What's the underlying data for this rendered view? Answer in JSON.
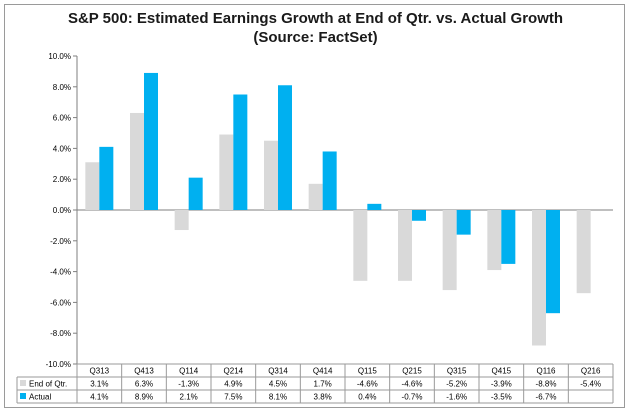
{
  "chart_data": {
    "type": "bar",
    "title": "S&P 500: Estimated Earnings Growth at End of Qtr. vs. Actual Growth",
    "subtitle": "(Source: FactSet)",
    "categories": [
      "Q313",
      "Q413",
      "Q114",
      "Q214",
      "Q314",
      "Q414",
      "Q115",
      "Q215",
      "Q315",
      "Q415",
      "Q116",
      "Q216"
    ],
    "series": [
      {
        "name": "End of Qtr.",
        "color": "#d9d9d9",
        "values": [
          3.1,
          6.3,
          -1.3,
          4.9,
          4.5,
          1.7,
          -4.6,
          -4.6,
          -5.2,
          -3.9,
          -8.8,
          -5.4
        ],
        "labels": [
          "3.1%",
          "6.3%",
          "-1.3%",
          "4.9%",
          "4.5%",
          "1.7%",
          "-4.6%",
          "-4.6%",
          "-5.2%",
          "-3.9%",
          "-8.8%",
          "-5.4%"
        ]
      },
      {
        "name": "Actual",
        "color": "#00b0f0",
        "values": [
          4.1,
          8.9,
          2.1,
          7.5,
          8.1,
          3.8,
          0.4,
          -0.7,
          -1.6,
          -3.5,
          -6.7,
          null
        ],
        "labels": [
          "4.1%",
          "8.9%",
          "2.1%",
          "7.5%",
          "8.1%",
          "3.8%",
          "0.4%",
          "-0.7%",
          "-1.6%",
          "-3.5%",
          "-6.7%",
          ""
        ]
      }
    ],
    "ylim": [
      -10,
      10
    ],
    "yticks": [
      10,
      8,
      6,
      4,
      2,
      0,
      -2,
      -4,
      -6,
      -8,
      -10
    ],
    "ytick_labels": [
      "10.0%",
      "8.0%",
      "6.0%",
      "4.0%",
      "2.0%",
      "0.0%",
      "-2.0%",
      "-4.0%",
      "-6.0%",
      "-8.0%",
      "-10.0%"
    ],
    "grid": false,
    "legend": "data-table"
  }
}
